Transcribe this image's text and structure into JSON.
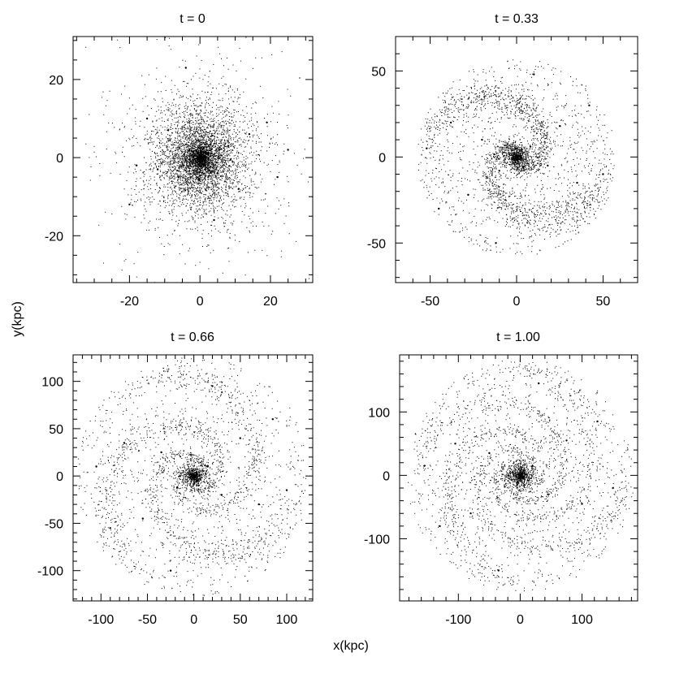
{
  "figure": {
    "xlabel": "x(kpc)",
    "ylabel": "y(kpc)"
  },
  "chart_data": [
    {
      "type": "scatter",
      "title": "t = 0",
      "xlim": [
        -36,
        32
      ],
      "ylim": [
        -32,
        31
      ],
      "xticks": [
        -20,
        0,
        20
      ],
      "yticks": [
        -20,
        0,
        20
      ],
      "xlabel": "",
      "ylabel": "",
      "grid": false,
      "morphology": "dense centrally concentrated particle cloud",
      "points": [
        [
          0,
          0
        ],
        [
          2,
          1
        ],
        [
          -3,
          2
        ],
        [
          5,
          -4
        ],
        [
          -6,
          -5
        ],
        [
          8,
          3
        ],
        [
          -9,
          7
        ],
        [
          11,
          -8
        ],
        [
          -12,
          -3
        ],
        [
          14,
          6
        ],
        [
          -15,
          10
        ],
        [
          4,
          -16
        ],
        [
          -18,
          -2
        ],
        [
          19,
          9
        ],
        [
          -20,
          -12
        ],
        [
          22,
          -5
        ],
        [
          -4,
          23
        ],
        [
          25,
          2
        ]
      ]
    },
    {
      "type": "scatter",
      "title": "t = 0.33",
      "xlim": [
        -70,
        70
      ],
      "ylim": [
        -73,
        70
      ],
      "xticks": [
        -50,
        0,
        50
      ],
      "yticks": [
        -50,
        0,
        50
      ],
      "xlabel": "",
      "ylabel": "",
      "grid": false,
      "morphology": "two-armed spiral with dense core",
      "points": [
        [
          0,
          0
        ],
        [
          8,
          6
        ],
        [
          -10,
          -8
        ],
        [
          18,
          -5
        ],
        [
          -20,
          10
        ],
        [
          25,
          18
        ],
        [
          -28,
          -22
        ],
        [
          35,
          -15
        ],
        [
          -38,
          20
        ],
        [
          42,
          30
        ],
        [
          -45,
          -30
        ],
        [
          50,
          -10
        ],
        [
          -52,
          5
        ],
        [
          10,
          48
        ],
        [
          -12,
          -50
        ]
      ]
    },
    {
      "type": "scatter",
      "title": "t = 0.66",
      "xlim": [
        -130,
        128
      ],
      "ylim": [
        -132,
        128
      ],
      "xticks": [
        -100,
        -50,
        0,
        50,
        100
      ],
      "yticks": [
        -100,
        -50,
        0,
        50,
        100
      ],
      "xlabel": "",
      "ylabel": "",
      "grid": false,
      "morphology": "wound spiral arms with compact core",
      "points": [
        [
          0,
          0
        ],
        [
          15,
          10
        ],
        [
          -18,
          -12
        ],
        [
          30,
          -20
        ],
        [
          -35,
          25
        ],
        [
          50,
          40
        ],
        [
          -55,
          -45
        ],
        [
          70,
          -30
        ],
        [
          -75,
          35
        ],
        [
          85,
          60
        ],
        [
          -90,
          -55
        ],
        [
          100,
          -15
        ],
        [
          -105,
          10
        ],
        [
          20,
          95
        ],
        [
          -25,
          -100
        ]
      ]
    },
    {
      "type": "scatter",
      "title": "t = 1.00",
      "xlim": [
        -195,
        190
      ],
      "ylim": [
        -198,
        190
      ],
      "xticks": [
        -100,
        0,
        100
      ],
      "yticks": [
        -100,
        0,
        100
      ],
      "xlabel": "",
      "ylabel": "",
      "grid": false,
      "morphology": "extended flocculent spiral with compact core",
      "points": [
        [
          0,
          0
        ],
        [
          20,
          15
        ],
        [
          -25,
          -18
        ],
        [
          45,
          -30
        ],
        [
          -50,
          35
        ],
        [
          75,
          55
        ],
        [
          -80,
          -60
        ],
        [
          100,
          -45
        ],
        [
          -105,
          50
        ],
        [
          125,
          85
        ],
        [
          -130,
          -80
        ],
        [
          150,
          -20
        ],
        [
          -155,
          15
        ],
        [
          30,
          145
        ],
        [
          -35,
          -150
        ]
      ]
    }
  ]
}
